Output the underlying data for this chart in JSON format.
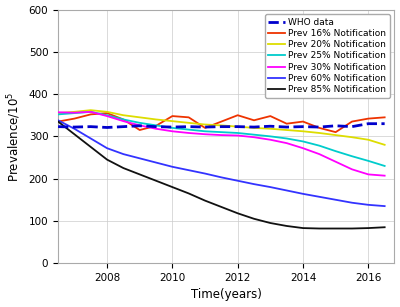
{
  "title": "",
  "xlabel": "Time(years)",
  "ylabel": "Prevalence/10$^5$",
  "xlim": [
    2006.5,
    2016.8
  ],
  "ylim": [
    0,
    600
  ],
  "xticks": [
    2008,
    2010,
    2012,
    2014,
    2016
  ],
  "yticks": [
    0,
    100,
    200,
    300,
    400,
    500,
    600
  ],
  "figsize": [
    4.0,
    3.07
  ],
  "dpi": 100,
  "who_data": {
    "x": [
      2006.5,
      2007,
      2007.5,
      2008,
      2008.5,
      2009,
      2009.5,
      2010,
      2010.5,
      2011,
      2011.5,
      2012,
      2012.5,
      2013,
      2013.5,
      2014,
      2014.5,
      2015,
      2015.5,
      2016,
      2016.5
    ],
    "y": [
      323,
      322,
      323,
      321,
      323,
      325,
      323,
      322,
      323,
      322,
      323,
      323,
      322,
      324,
      322,
      323,
      322,
      325,
      323,
      330,
      330
    ],
    "color": "#0000CC",
    "linestyle": "--",
    "linewidth": 2.0,
    "label": "WHO data"
  },
  "lines": [
    {
      "label": "Prev 16% Notification",
      "color": "#EE3300",
      "linewidth": 1.3,
      "x": [
        2006.5,
        2007,
        2007.5,
        2008,
        2008.5,
        2009,
        2009.5,
        2010,
        2010.5,
        2011,
        2011.5,
        2012,
        2012.5,
        2013,
        2013.5,
        2014,
        2014.5,
        2015,
        2015.5,
        2016,
        2016.5
      ],
      "y": [
        335,
        342,
        352,
        355,
        340,
        315,
        325,
        348,
        345,
        320,
        335,
        350,
        338,
        348,
        330,
        335,
        320,
        310,
        335,
        342,
        345
      ]
    },
    {
      "label": "Prev 20% Notification",
      "color": "#DDDD00",
      "linewidth": 1.3,
      "x": [
        2006.5,
        2007,
        2007.5,
        2008,
        2008.5,
        2009,
        2009.5,
        2010,
        2010.5,
        2011,
        2011.5,
        2012,
        2012.5,
        2013,
        2013.5,
        2014,
        2014.5,
        2015,
        2015.5,
        2016,
        2016.5
      ],
      "y": [
        355,
        358,
        362,
        358,
        350,
        345,
        340,
        336,
        332,
        328,
        326,
        323,
        320,
        318,
        315,
        312,
        308,
        303,
        298,
        292,
        280
      ]
    },
    {
      "label": "Prev 25% Notification",
      "color": "#00CCCC",
      "linewidth": 1.3,
      "x": [
        2006.5,
        2007,
        2007.5,
        2008,
        2008.5,
        2009,
        2009.5,
        2010,
        2010.5,
        2011,
        2011.5,
        2012,
        2012.5,
        2013,
        2013.5,
        2014,
        2014.5,
        2015,
        2015.5,
        2016,
        2016.5
      ],
      "y": [
        352,
        355,
        358,
        350,
        340,
        332,
        326,
        320,
        316,
        312,
        310,
        308,
        304,
        300,
        295,
        288,
        278,
        265,
        253,
        242,
        230
      ]
    },
    {
      "label": "Prev 30% Notification",
      "color": "#FF00FF",
      "linewidth": 1.3,
      "x": [
        2006.5,
        2007,
        2007.5,
        2008,
        2008.5,
        2009,
        2009.5,
        2010,
        2010.5,
        2011,
        2011.5,
        2012,
        2012.5,
        2013,
        2013.5,
        2014,
        2014.5,
        2015,
        2015.5,
        2016,
        2016.5
      ],
      "y": [
        357,
        356,
        358,
        348,
        336,
        326,
        318,
        312,
        308,
        305,
        303,
        302,
        298,
        292,
        284,
        272,
        258,
        240,
        222,
        210,
        207
      ]
    },
    {
      "label": "Prev 60% Notification",
      "color": "#3333FF",
      "linewidth": 1.3,
      "x": [
        2006.5,
        2007,
        2007.5,
        2008,
        2008.5,
        2009,
        2009.5,
        2010,
        2010.5,
        2011,
        2011.5,
        2012,
        2012.5,
        2013,
        2013.5,
        2014,
        2014.5,
        2015,
        2015.5,
        2016,
        2016.5
      ],
      "y": [
        338,
        318,
        295,
        272,
        258,
        248,
        238,
        228,
        220,
        212,
        203,
        195,
        187,
        180,
        172,
        164,
        157,
        150,
        143,
        138,
        135
      ]
    },
    {
      "label": "Prev 85% Notification",
      "color": "#111111",
      "linewidth": 1.3,
      "x": [
        2006.5,
        2007,
        2007.5,
        2008,
        2008.5,
        2009,
        2009.5,
        2010,
        2010.5,
        2011,
        2011.5,
        2012,
        2012.5,
        2013,
        2013.5,
        2014,
        2014.5,
        2015,
        2015.5,
        2016,
        2016.5
      ],
      "y": [
        335,
        305,
        275,
        245,
        225,
        210,
        195,
        180,
        165,
        148,
        133,
        118,
        105,
        95,
        88,
        83,
        82,
        82,
        82,
        83,
        85
      ]
    }
  ],
  "legend_fontsize": 6.5,
  "legend_loc": "upper right",
  "tick_fontsize": 7.5,
  "label_fontsize": 8.5,
  "background_color": "#FFFFFF",
  "grid_color": "#CCCCCC",
  "grid_linestyle": "-",
  "grid_linewidth": 0.5,
  "border_color": "#AAAAAA"
}
